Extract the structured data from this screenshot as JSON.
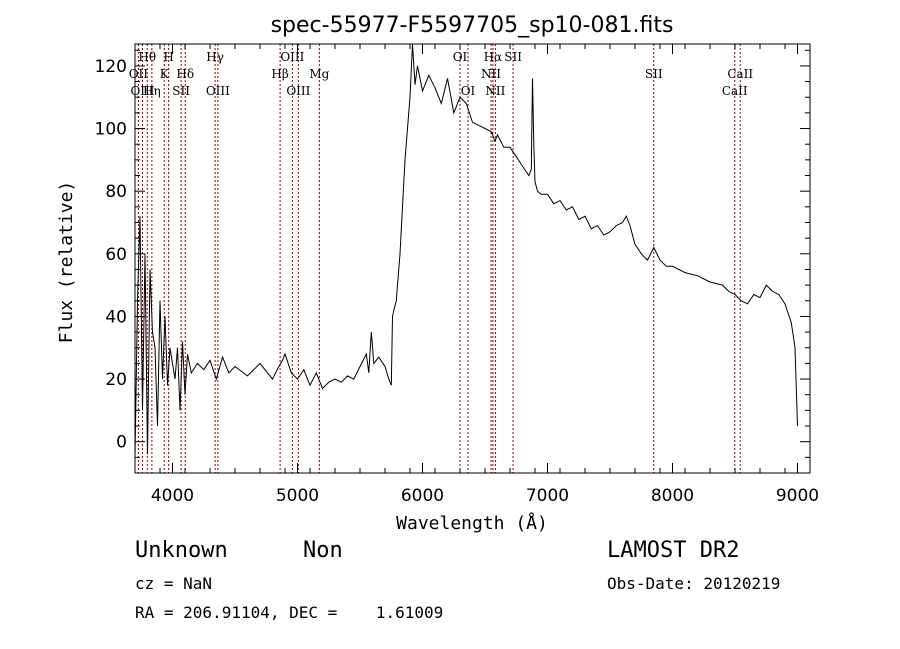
{
  "chart_data": {
    "type": "line",
    "title": "spec-55977-F5597705_sp10-081.fits",
    "xlabel": "Wavelength (Å)",
    "ylabel": "Flux (relative)",
    "xlim": [
      3700,
      9100
    ],
    "ylim": [
      -10,
      127
    ],
    "x_ticks": [
      4000,
      5000,
      6000,
      7000,
      8000,
      9000
    ],
    "y_ticks": [
      0,
      20,
      40,
      60,
      80,
      100,
      120
    ],
    "grid": false,
    "line_color": "#000000",
    "marker_color": "#8b0000",
    "series": [
      {
        "x": [
          3700,
          3720,
          3740,
          3760,
          3780,
          3800,
          3820,
          3840,
          3860,
          3880,
          3900,
          3920,
          3940,
          3960,
          3980,
          4000,
          4020,
          4040,
          4060,
          4080,
          4100,
          4120,
          4150,
          4200,
          4250,
          4300,
          4350,
          4400,
          4450,
          4500,
          4600,
          4700,
          4800,
          4850,
          4880,
          4900,
          4950,
          5000,
          5050,
          5100,
          5150,
          5200,
          5250,
          5300,
          5350,
          5400,
          5450,
          5500,
          5550,
          5570,
          5590,
          5610,
          5650,
          5700,
          5730,
          5750,
          5760,
          5770,
          5790,
          5800,
          5820,
          5840,
          5860,
          5880,
          5900,
          5920,
          5940,
          5960,
          6000,
          6050,
          6100,
          6150,
          6200,
          6250,
          6300,
          6350,
          6400,
          6450,
          6500,
          6550,
          6580,
          6600,
          6650,
          6700,
          6750,
          6800,
          6850,
          6870,
          6880,
          6890,
          6900,
          6920,
          6950,
          7000,
          7050,
          7100,
          7150,
          7200,
          7250,
          7300,
          7350,
          7400,
          7450,
          7500,
          7550,
          7600,
          7630,
          7660,
          7700,
          7750,
          7800,
          7850,
          7900,
          7950,
          8000,
          8100,
          8200,
          8300,
          8400,
          8450,
          8500,
          8550,
          8600,
          8650,
          8700,
          8750,
          8800,
          8850,
          8900,
          8950,
          8980,
          9000
        ],
        "y": [
          -5,
          45,
          72,
          10,
          60,
          -4,
          55,
          35,
          30,
          5,
          45,
          20,
          40,
          18,
          30,
          25,
          20,
          30,
          10,
          32,
          15,
          28,
          22,
          25,
          23,
          26,
          20,
          27,
          22,
          24,
          21,
          25,
          20,
          24,
          26,
          28,
          22,
          20,
          23,
          18,
          22,
          17,
          19,
          20,
          19,
          21,
          20,
          24,
          28,
          22,
          35,
          25,
          27,
          24,
          20,
          18,
          40,
          42,
          45,
          50,
          60,
          75,
          90,
          100,
          110,
          127,
          114,
          120,
          112,
          117,
          113,
          108,
          116,
          105,
          110,
          108,
          102,
          101,
          100,
          99,
          96,
          98,
          94,
          94,
          91,
          88,
          85,
          87,
          116,
          95,
          83,
          80,
          79,
          79,
          76,
          77,
          74,
          75,
          71,
          72,
          68,
          69,
          66,
          67,
          69,
          70,
          72,
          69,
          63,
          60,
          58,
          62,
          58,
          56,
          56,
          54,
          53,
          51,
          50,
          48,
          47,
          45,
          44,
          47,
          46,
          50,
          48,
          47,
          44,
          38,
          30,
          5
        ]
      }
    ],
    "spectral_lines": [
      {
        "label": "Hθ",
        "x": 3798,
        "row": 1
      },
      {
        "label": "OII",
        "x": 3727,
        "row": 2
      },
      {
        "label": "OIII",
        "x": 3760,
        "row": 3
      },
      {
        "label": "Hη",
        "x": 3835,
        "row": 3
      },
      {
        "label": "H",
        "x": 3969,
        "row": 1
      },
      {
        "label": "K",
        "x": 3934,
        "row": 2
      },
      {
        "label": "Hδ",
        "x": 4102,
        "row": 2
      },
      {
        "label": "SII",
        "x": 4069,
        "row": 3
      },
      {
        "label": "Hγ",
        "x": 4341,
        "row": 1
      },
      {
        "label": "OIII",
        "x": 4363,
        "row": 3
      },
      {
        "label": "OIII",
        "x": 4959,
        "row": 1
      },
      {
        "label": "Hβ",
        "x": 4861,
        "row": 2
      },
      {
        "label": "OIII",
        "x": 5007,
        "row": 3
      },
      {
        "label": "Mg",
        "x": 5175,
        "row": 2
      },
      {
        "label": "OI",
        "x": 6300,
        "row": 1
      },
      {
        "label": "OI",
        "x": 6364,
        "row": 3
      },
      {
        "label": "Hα",
        "x": 6563,
        "row": 1
      },
      {
        "label": "NII",
        "x": 6548,
        "row": 2
      },
      {
        "label": "NII",
        "x": 6583,
        "row": 3
      },
      {
        "label": "SII",
        "x": 6725,
        "row": 1
      },
      {
        "label": "SII",
        "x": 7850,
        "row": 2
      },
      {
        "label": "CaII",
        "x": 8542,
        "row": 2
      },
      {
        "label": "CaII",
        "x": 8498,
        "row": 3
      }
    ]
  },
  "info": {
    "class": "Unknown",
    "subclass": "Non",
    "cz": "cz = NaN",
    "radec": "RA = 206.91104, DEC =    1.61009",
    "survey": "LAMOST DR2",
    "obsdate": "Obs-Date: 20120219"
  }
}
